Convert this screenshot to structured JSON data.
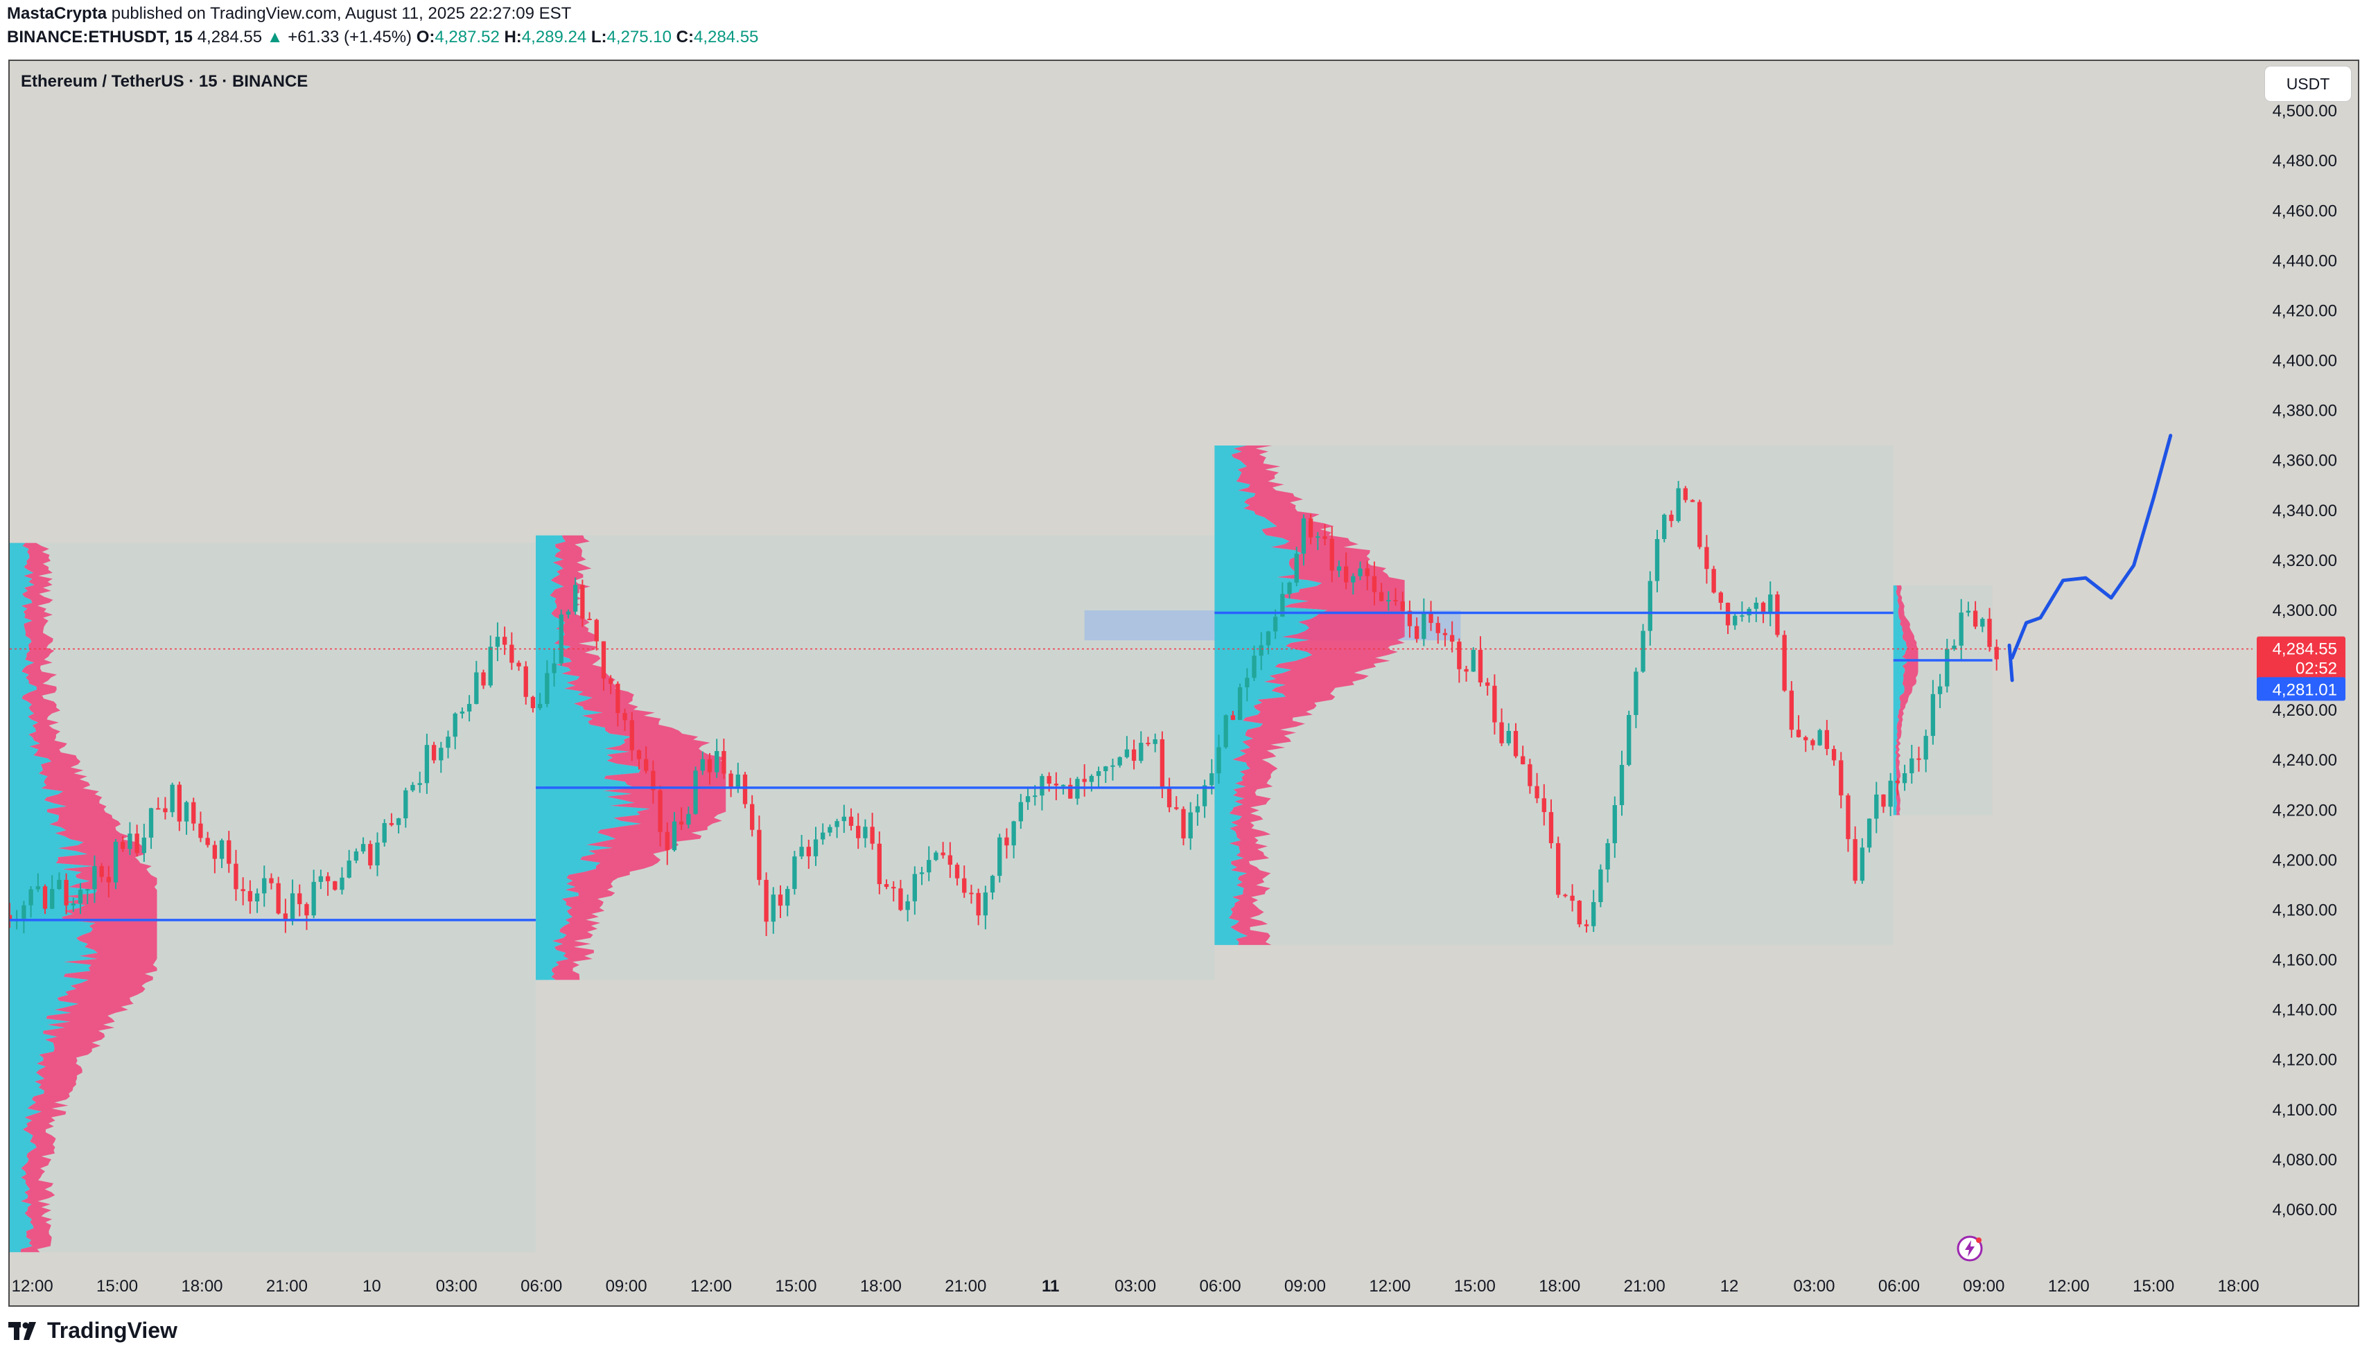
{
  "header": {
    "author": "MastaCrypta",
    "published_text": "published on TradingView.com, August 11, 2025 22:27:09 EST",
    "symbol": "BINANCE:ETHUSDT, 15",
    "last": "4,284.55",
    "change": "+61.33 (+1.45%)",
    "o_label": "O:",
    "o_val": "4,287.52",
    "h_label": "H:",
    "h_val": "4,289.24",
    "l_label": "L:",
    "l_val": "4,275.10",
    "c_label": "C:",
    "c_val": "4,284.55"
  },
  "chart_title": "Ethereum / TetherUS · 15 · BINANCE",
  "currency_button": "USDT",
  "footer_brand": "TradingView",
  "colors": {
    "up": "#22a69a",
    "down": "#f23645",
    "poc_line": "#2962ff",
    "profile_up": "#2ec4d8",
    "profile_down": "#f0407a",
    "last_price_badge": "#f23645",
    "poc_badge": "#2962ff",
    "zone": "#a7bfe3",
    "plot_bg": "#d6d5d0"
  },
  "chart_data": {
    "type": "candlestick",
    "timeframe": "15",
    "ylim": [
      4040,
      4520
    ],
    "y_ticks": [
      "4,500.00",
      "4,480.00",
      "4,460.00",
      "4,440.00",
      "4,420.00",
      "4,400.00",
      "4,380.00",
      "4,360.00",
      "4,340.00",
      "4,320.00",
      "4,300.00",
      "4,280.00",
      "4,260.00",
      "4,240.00",
      "4,220.00",
      "4,200.00",
      "4,180.00",
      "4,160.00",
      "4,140.00",
      "4,120.00",
      "4,100.00",
      "4,080.00",
      "4,060.00"
    ],
    "x_ticks": [
      "12:00",
      "15:00",
      "18:00",
      "21:00",
      "10",
      "03:00",
      "06:00",
      "09:00",
      "12:00",
      "15:00",
      "18:00",
      "21:00",
      "11",
      "03:00",
      "06:00",
      "09:00",
      "12:00",
      "15:00",
      "18:00",
      "21:00",
      "12",
      "03:00",
      "06:00",
      "09:00",
      "12:00",
      "15:00",
      "18:00"
    ],
    "x_tick_bold": "11",
    "x_range_hours": [
      -0.8,
      78.5
    ],
    "last_price": {
      "value": 4284.55,
      "label": "4,284.55",
      "countdown": "02:52"
    },
    "poc_badge": {
      "value": 4281.01,
      "label": "4,281.01"
    },
    "sessions": [
      {
        "start": -0.8,
        "end": 17.8,
        "high": 4327,
        "low": 4043,
        "poc": 4176
      },
      {
        "start": 17.8,
        "end": 41.8,
        "high": 4330,
        "low": 4152,
        "poc": 4229
      },
      {
        "start": 41.8,
        "end": 65.8,
        "high": 4366,
        "low": 4166,
        "poc": 4299
      },
      {
        "start": 65.8,
        "end": 69.3,
        "high": 4310,
        "low": 4218,
        "poc": 4280
      }
    ],
    "zone": {
      "start": 37.2,
      "end": 50.5,
      "low": 4288,
      "high": 4300
    },
    "projection": {
      "start_hours": 70.0,
      "points": [
        [
          70.0,
          4281
        ],
        [
          70.5,
          4295
        ],
        [
          71.0,
          4297
        ],
        [
          71.8,
          4312
        ],
        [
          72.6,
          4313
        ],
        [
          73.5,
          4305
        ],
        [
          74.3,
          4318
        ],
        [
          75.0,
          4345
        ],
        [
          75.6,
          4370
        ]
      ]
    },
    "path_hours": [
      -0.8,
      2.5,
      5.0,
      7.5,
      9.5,
      12.0,
      14.5,
      16.5,
      17.8,
      19.2,
      21.0,
      22.5,
      23.8,
      25.0,
      26.0,
      27.5,
      29.0,
      30.5,
      32.0,
      33.5,
      35.0,
      36.5,
      38.0,
      39.5,
      40.8,
      41.8,
      42.6,
      44.0,
      45.0,
      46.5,
      48.0,
      49.5,
      51.0,
      52.2,
      53.3,
      54.0,
      55.0,
      56.5,
      57.5,
      58.5,
      59.3,
      60.0,
      61.5,
      62.5,
      63.6,
      64.5,
      65.2,
      66.5,
      67.5,
      68.5,
      69.5
    ],
    "path_closes": [
      4178,
      4195,
      4225,
      4190,
      4180,
      4205,
      4250,
      4285,
      4262,
      4308,
      4250,
      4205,
      4243,
      4232,
      4177,
      4205,
      4218,
      4183,
      4198,
      4177,
      4232,
      4225,
      4232,
      4248,
      4208,
      4244,
      4262,
      4300,
      4335,
      4315,
      4302,
      4290,
      4278,
      4247,
      4228,
      4185,
      4170,
      4255,
      4330,
      4350,
      4310,
      4298,
      4300,
      4240,
      4252,
      4192,
      4225,
      4236,
      4278,
      4302,
      4284
    ]
  }
}
